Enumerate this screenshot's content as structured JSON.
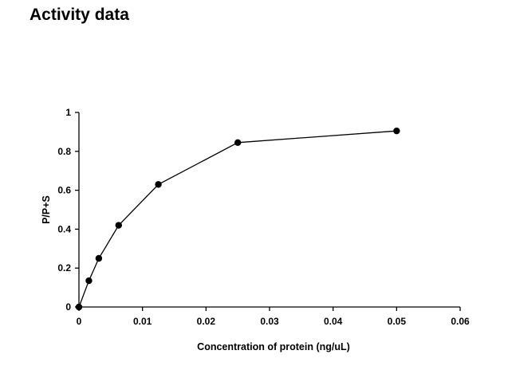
{
  "page": {
    "title": "Activity data"
  },
  "chart_data": {
    "type": "line",
    "title": "",
    "xlabel": "Concentration of protein (ng/uL)",
    "ylabel": "P/P+S",
    "xlim": [
      0,
      0.06
    ],
    "ylim": [
      0,
      1
    ],
    "x_ticks": [
      0,
      0.01,
      0.02,
      0.03,
      0.04,
      0.05,
      0.06
    ],
    "x_tick_labels": [
      "0",
      "0.01",
      "0.02",
      "0.03",
      "0.04",
      "0.05",
      "0.06"
    ],
    "y_ticks": [
      0,
      0.2,
      0.4,
      0.6,
      0.8,
      1
    ],
    "y_tick_labels": [
      "0",
      "0.2",
      "0.4",
      "0.6",
      "0.8",
      "1"
    ],
    "grid": false,
    "legend": "none",
    "marker": "filled-circle",
    "line_color": "#000000",
    "series": [
      {
        "x": [
          0,
          0.0015625,
          0.003125,
          0.00625,
          0.0125,
          0.025,
          0.05
        ],
        "y": [
          0,
          0.135,
          0.25,
          0.42,
          0.63,
          0.845,
          0.905
        ]
      }
    ]
  }
}
